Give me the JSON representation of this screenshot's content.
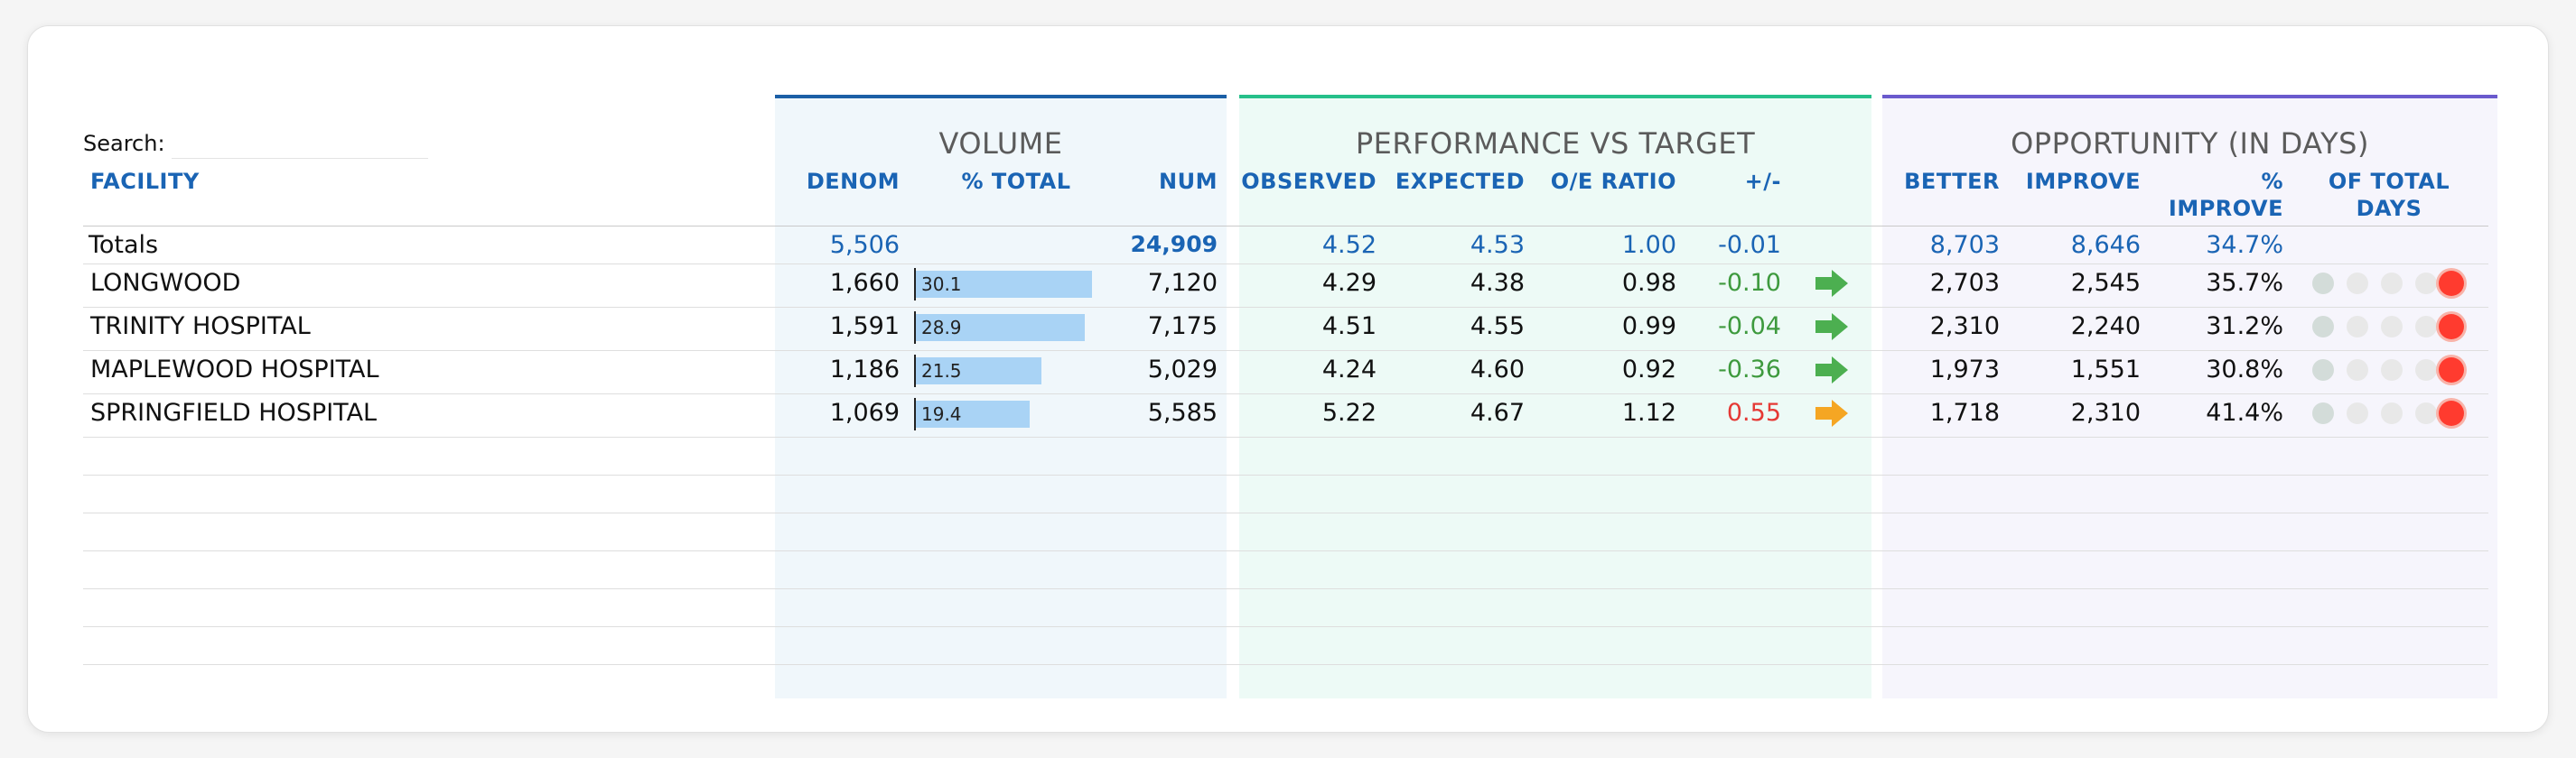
{
  "search": {
    "label": "Search:",
    "value": "",
    "placeholder": ""
  },
  "groups": {
    "volume": "VOLUME",
    "performance": "PERFORMANCE VS TARGET",
    "opportunity": "OPPORTUNITY (IN DAYS)"
  },
  "headers": {
    "facility": "FACILITY",
    "denom": "DENOM",
    "pct_total": "% TOTAL",
    "num": "NUM",
    "observed": "OBSERVED",
    "expected": "EXPECTED",
    "oe_ratio": "O/E RATIO",
    "plus_minus": "+/-",
    "better": "BETTER",
    "improve": "IMPROVE",
    "pct_improve_1": "%",
    "pct_improve_2": "IMPROVE",
    "of_total_1": "OF TOTAL",
    "of_total_2": "DAYS"
  },
  "totals": {
    "label": "Totals",
    "denom": "5,506",
    "num": "24,909",
    "observed": "4.52",
    "expected": "4.53",
    "oe_ratio": "1.00",
    "plus_minus": "-0.01",
    "better": "8,703",
    "improve": "8,646",
    "pct_improve": "34.7%"
  },
  "rows": [
    {
      "facility": "LONGWOOD",
      "denom": "1,660",
      "pct_total": "30.1",
      "pct_value": 30.1,
      "num": "7,120",
      "observed": "4.29",
      "expected": "4.38",
      "oe_ratio": "0.98",
      "plus_minus": "-0.10",
      "status": "good",
      "better": "2,703",
      "improve": "2,545",
      "pct_improve": "35.7%",
      "of_total_level": 5
    },
    {
      "facility": "TRINITY HOSPITAL",
      "denom": "1,591",
      "pct_total": "28.9",
      "pct_value": 28.9,
      "num": "7,175",
      "observed": "4.51",
      "expected": "4.55",
      "oe_ratio": "0.99",
      "plus_minus": "-0.04",
      "status": "good",
      "better": "2,310",
      "improve": "2,240",
      "pct_improve": "31.2%",
      "of_total_level": 5
    },
    {
      "facility": "MAPLEWOOD HOSPITAL",
      "denom": "1,186",
      "pct_total": "21.5",
      "pct_value": 21.5,
      "num": "5,029",
      "observed": "4.24",
      "expected": "4.60",
      "oe_ratio": "0.92",
      "plus_minus": "-0.36",
      "status": "good",
      "better": "1,973",
      "improve": "1,551",
      "pct_improve": "30.8%",
      "of_total_level": 5
    },
    {
      "facility": "SPRINGFIELD HOSPITAL",
      "denom": "1,069",
      "pct_total": "19.4",
      "pct_value": 19.4,
      "num": "5,585",
      "observed": "5.22",
      "expected": "4.67",
      "oe_ratio": "1.12",
      "plus_minus": "0.55",
      "status": "bad",
      "better": "1,718",
      "improve": "2,310",
      "pct_improve": "41.4%",
      "of_total_level": 5
    }
  ],
  "colors": {
    "volume_accent": "#1b5fa6",
    "performance_accent": "#26c08a",
    "opportunity_accent": "#6a5acd",
    "good": "#3e9a3e",
    "bad": "#e53935",
    "arrow_good": "#4caf50",
    "arrow_bad": "#f5a623"
  },
  "icons": {
    "good": "arrow-right-green-icon",
    "bad": "arrow-right-orange-icon",
    "indicator": "rating-dot-icon"
  }
}
